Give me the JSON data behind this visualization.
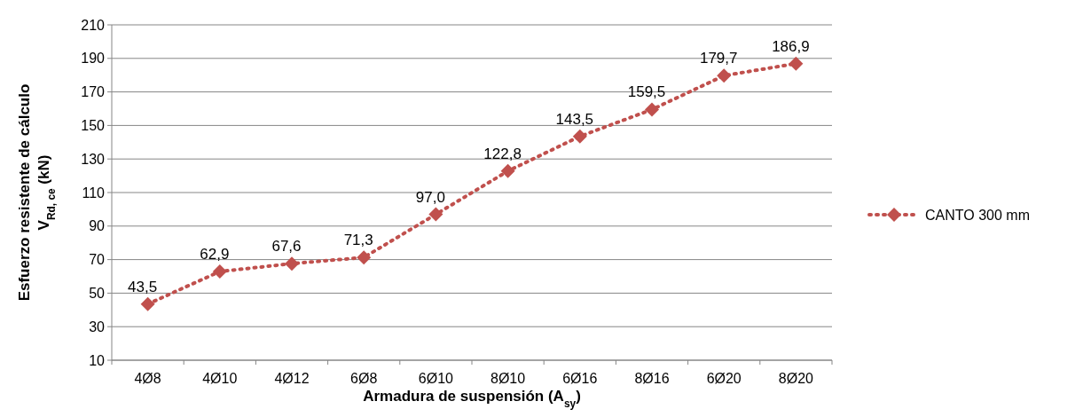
{
  "chart_data": {
    "type": "line",
    "xlabel": "Armadura de suspensión (A$_{sy}$)",
    "ylabel": "Esfuerzo resistente de cálculo\nV$_{Rd, ce}$ (kN)",
    "categories": [
      "4Ø8",
      "4Ø10",
      "4Ø12",
      "6Ø8",
      "6Ø10",
      "8Ø10",
      "6Ø16",
      "8Ø16",
      "6Ø20",
      "8Ø20"
    ],
    "series": [
      {
        "name": "CANTO 300 mm",
        "color": "#c0504d",
        "values": [
          43.5,
          62.9,
          67.6,
          71.3,
          97.0,
          122.8,
          143.5,
          159.5,
          179.7,
          186.9
        ],
        "value_labels": [
          "43,5",
          "62,9",
          "67,6",
          "71,3",
          "97,0",
          "122,8",
          "143,5",
          "159,5",
          "179,7",
          "186,9"
        ]
      }
    ],
    "ylim": [
      10,
      210
    ],
    "yticks": [
      10,
      30,
      50,
      70,
      90,
      110,
      130,
      150,
      170,
      190,
      210
    ],
    "grid": "y",
    "legend": "right",
    "marker": "diamond",
    "line_style": "dotted"
  }
}
